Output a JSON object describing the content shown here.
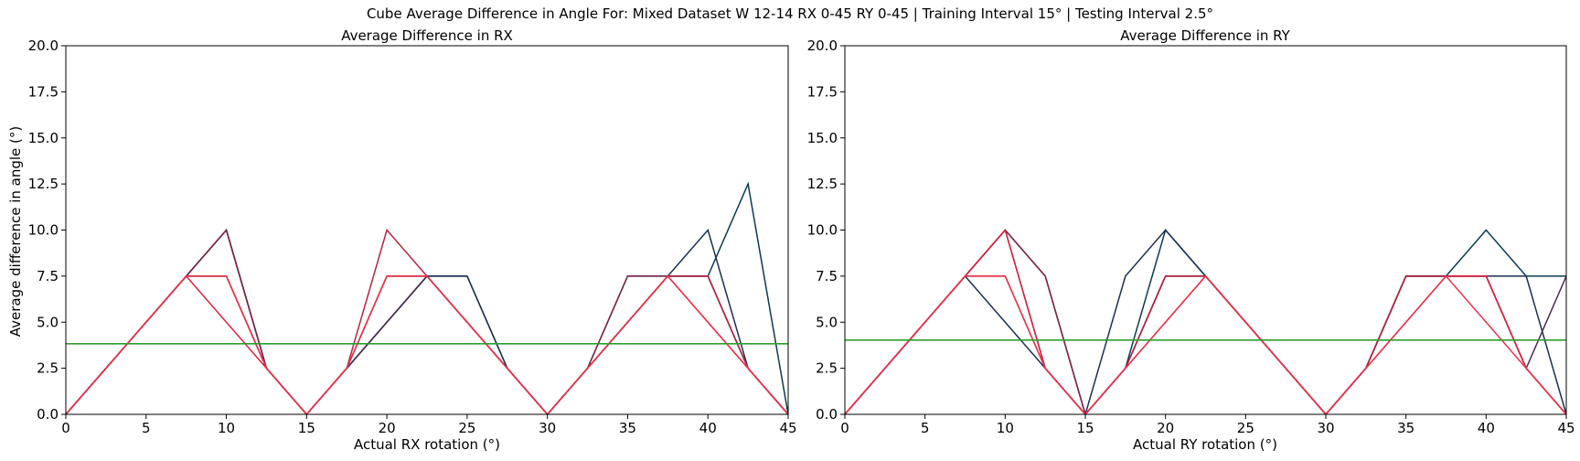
{
  "suptitle": "Cube Average Difference in Angle For: Mixed Dataset W 12-14 RX 0-45 RY 0-45 | Training Interval 15° | Testing Interval 2.5°",
  "chart_data": [
    {
      "type": "line",
      "title": "Average Difference in RX",
      "xlabel": "Actual RX rotation (°)",
      "ylabel": "Average difference in angle (°)",
      "xlim": [
        0,
        45
      ],
      "ylim": [
        0,
        20
      ],
      "xticks": [
        "0",
        "5",
        "10",
        "15",
        "20",
        "25",
        "30",
        "35",
        "40",
        "45"
      ],
      "yticks": [
        "0.0",
        "2.5",
        "5.0",
        "7.5",
        "10.0",
        "12.5",
        "15.0",
        "17.5",
        "20.0"
      ],
      "grid": false,
      "series": [
        {
          "color": "#0b3a54",
          "x": [
            0,
            2.5,
            5,
            7.5,
            10,
            12.5,
            15,
            17.5,
            20,
            22.5,
            25,
            27.5,
            30,
            32.5,
            35,
            37.5,
            40,
            42.5,
            45
          ],
          "y": [
            0,
            2.5,
            5,
            7.5,
            7.5,
            2.5,
            0,
            2.5,
            5,
            7.5,
            7.5,
            2.5,
            0,
            2.5,
            5,
            7.5,
            7.5,
            12.5,
            0
          ]
        },
        {
          "color": "#1c2f55",
          "x": [
            0,
            2.5,
            5,
            7.5,
            10,
            12.5,
            15,
            17.5,
            20,
            22.5,
            25,
            27.5,
            30,
            32.5,
            35,
            37.5,
            40,
            42.5,
            45
          ],
          "y": [
            0,
            2.5,
            5,
            7.5,
            10,
            2.5,
            0,
            2.5,
            5,
            7.5,
            7.5,
            2.5,
            0,
            2.5,
            5,
            7.5,
            10,
            2.5,
            0
          ]
        },
        {
          "color": "#4a2a4f",
          "x": [
            0,
            2.5,
            5,
            7.5,
            10,
            12.5,
            15,
            17.5,
            20,
            22.5,
            25,
            27.5,
            30,
            32.5,
            35,
            37.5,
            40,
            42.5,
            45
          ],
          "y": [
            0,
            2.5,
            5,
            7.5,
            10,
            2.5,
            0,
            2.5,
            5,
            7.5,
            5,
            2.5,
            0,
            2.5,
            7.5,
            7.5,
            7.5,
            2.5,
            0
          ]
        },
        {
          "color": "#7a2548",
          "x": [
            0,
            2.5,
            5,
            7.5,
            10,
            12.5,
            15,
            17.5,
            20,
            22.5,
            25,
            27.5,
            30,
            32.5,
            35,
            37.5,
            40,
            42.5,
            45
          ],
          "y": [
            0,
            2.5,
            5,
            7.5,
            10,
            2.5,
            0,
            2.5,
            7.5,
            7.5,
            5,
            2.5,
            0,
            2.5,
            7.5,
            7.5,
            7.5,
            2.5,
            0
          ]
        },
        {
          "color": "#b5243f",
          "x": [
            0,
            2.5,
            5,
            7.5,
            10,
            12.5,
            15,
            17.5,
            20,
            22.5,
            25,
            27.5,
            30,
            32.5,
            35,
            37.5,
            40,
            42.5,
            45
          ],
          "y": [
            0,
            2.5,
            5,
            7.5,
            7.5,
            2.5,
            0,
            2.5,
            10,
            7.5,
            5,
            2.5,
            0,
            2.5,
            5,
            7.5,
            7.5,
            2.5,
            0
          ]
        },
        {
          "color": "#e0213f",
          "x": [
            0,
            2.5,
            5,
            7.5,
            10,
            12.5,
            15,
            17.5,
            20,
            22.5,
            25,
            27.5,
            30,
            32.5,
            35,
            37.5,
            40,
            42.5,
            45
          ],
          "y": [
            0,
            2.5,
            5,
            7.5,
            5,
            2.5,
            0,
            2.5,
            7.5,
            7.5,
            5,
            2.5,
            0,
            2.5,
            5,
            7.5,
            5,
            2.5,
            0
          ]
        },
        {
          "color": "#e8344a",
          "x": [
            0,
            2.5,
            5,
            7.5,
            10,
            12.5,
            15,
            17.5,
            20,
            22.5,
            25,
            27.5,
            30,
            32.5,
            35,
            37.5,
            40,
            42.5,
            45
          ],
          "y": [
            0,
            2.5,
            5,
            7.5,
            7.5,
            2.5,
            0,
            2.5,
            7.5,
            7.5,
            5,
            2.5,
            0,
            2.5,
            5,
            7.5,
            5,
            2.5,
            0
          ]
        }
      ],
      "hline": {
        "y": 3.83,
        "color": "#2ca02c"
      }
    },
    {
      "type": "line",
      "title": "Average Difference in RY",
      "xlabel": "Actual RY rotation (°)",
      "ylabel": "",
      "xlim": [
        0,
        45
      ],
      "ylim": [
        0,
        20
      ],
      "xticks": [
        "0",
        "5",
        "10",
        "15",
        "20",
        "25",
        "30",
        "35",
        "40",
        "45"
      ],
      "yticks": [
        "0.0",
        "2.5",
        "5.0",
        "7.5",
        "10.0",
        "12.5",
        "15.0",
        "17.5",
        "20.0"
      ],
      "grid": false,
      "series": [
        {
          "color": "#0b3a54",
          "x": [
            0,
            2.5,
            5,
            7.5,
            10,
            12.5,
            15,
            17.5,
            20,
            22.5,
            25,
            27.5,
            30,
            32.5,
            35,
            37.5,
            40,
            42.5,
            45
          ],
          "y": [
            0,
            2.5,
            5,
            7.5,
            10,
            2.5,
            0,
            2.5,
            10,
            7.5,
            5,
            2.5,
            0,
            2.5,
            7.5,
            7.5,
            10,
            7.5,
            7.5
          ]
        },
        {
          "color": "#1c2f55",
          "x": [
            0,
            2.5,
            5,
            7.5,
            10,
            12.5,
            15,
            17.5,
            20,
            22.5,
            25,
            27.5,
            30,
            32.5,
            35,
            37.5,
            40,
            42.5,
            45
          ],
          "y": [
            0,
            2.5,
            5,
            7.5,
            5,
            2.5,
            0,
            7.5,
            10,
            7.5,
            5,
            2.5,
            0,
            2.5,
            7.5,
            7.5,
            7.5,
            7.5,
            0
          ]
        },
        {
          "color": "#4a2a4f",
          "x": [
            0,
            2.5,
            5,
            7.5,
            10,
            12.5,
            15,
            17.5,
            20,
            22.5,
            25,
            27.5,
            30,
            32.5,
            35,
            37.5,
            40,
            42.5,
            45
          ],
          "y": [
            0,
            2.5,
            5,
            7.5,
            10,
            7.5,
            0,
            2.5,
            7.5,
            7.5,
            5,
            2.5,
            0,
            2.5,
            7.5,
            7.5,
            7.5,
            2.5,
            7.5
          ]
        },
        {
          "color": "#7a2548",
          "x": [
            0,
            2.5,
            5,
            7.5,
            10,
            12.5,
            15,
            17.5,
            20,
            22.5,
            25,
            27.5,
            30,
            32.5,
            35,
            37.5,
            40,
            42.5,
            45
          ],
          "y": [
            0,
            2.5,
            5,
            7.5,
            10,
            7.5,
            0,
            2.5,
            7.5,
            7.5,
            5,
            2.5,
            0,
            2.5,
            7.5,
            7.5,
            7.5,
            2.5,
            0
          ]
        },
        {
          "color": "#b5243f",
          "x": [
            0,
            2.5,
            5,
            7.5,
            10,
            12.5,
            15,
            17.5,
            20,
            22.5,
            25,
            27.5,
            30,
            32.5,
            35,
            37.5,
            40,
            42.5,
            45
          ],
          "y": [
            0,
            2.5,
            5,
            7.5,
            7.5,
            2.5,
            0,
            2.5,
            7.5,
            7.5,
            5,
            2.5,
            0,
            2.5,
            7.5,
            7.5,
            7.5,
            2.5,
            0
          ]
        },
        {
          "color": "#e0213f",
          "x": [
            0,
            2.5,
            5,
            7.5,
            10,
            12.5,
            15,
            17.5,
            20,
            22.5,
            25,
            27.5,
            30,
            32.5,
            35,
            37.5,
            40,
            42.5,
            45
          ],
          "y": [
            0,
            2.5,
            5,
            7.5,
            10,
            2.5,
            0,
            2.5,
            5,
            7.5,
            5,
            2.5,
            0,
            2.5,
            5,
            7.5,
            7.5,
            2.5,
            0
          ]
        },
        {
          "color": "#e8344a",
          "x": [
            0,
            2.5,
            5,
            7.5,
            10,
            12.5,
            15,
            17.5,
            20,
            22.5,
            25,
            27.5,
            30,
            32.5,
            35,
            37.5,
            40,
            42.5,
            45
          ],
          "y": [
            0,
            2.5,
            5,
            7.5,
            7.5,
            2.5,
            0,
            2.5,
            5,
            7.5,
            5,
            2.5,
            0,
            2.5,
            5,
            7.5,
            5,
            2.5,
            0
          ]
        }
      ],
      "hline": {
        "y": 4.03,
        "color": "#2ca02c"
      }
    }
  ]
}
